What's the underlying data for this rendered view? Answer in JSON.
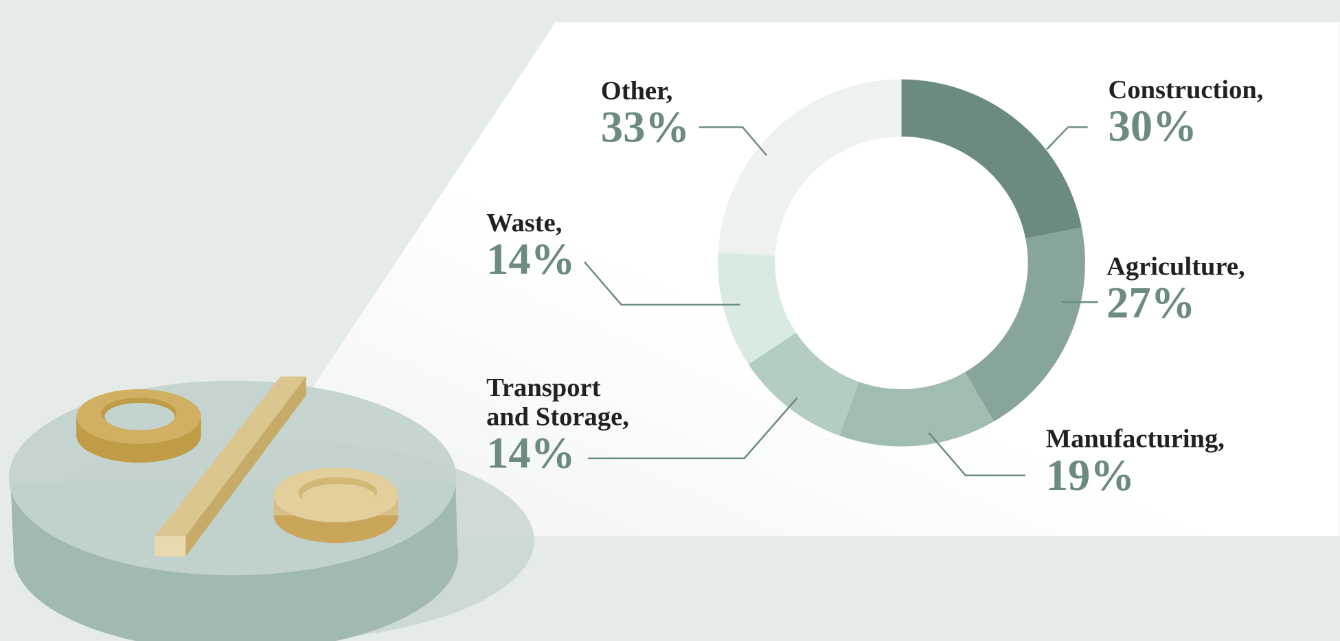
{
  "chart_data": {
    "type": "donut",
    "categories": [
      "Construction,",
      "Agriculture,",
      "Manufacturing,",
      "Transport and Storage,",
      "Waste,",
      "Other,"
    ],
    "values": [
      30,
      27,
      19,
      14,
      14,
      33
    ],
    "value_labels": [
      "30%",
      "27%",
      "19%",
      "14%",
      "14%",
      "33%"
    ],
    "colors": [
      "#6b8a82",
      "#88a59c",
      "#a0bdb0",
      "#b3cdc0",
      "#d9ebe0",
      "#edf2ef"
    ]
  }
}
